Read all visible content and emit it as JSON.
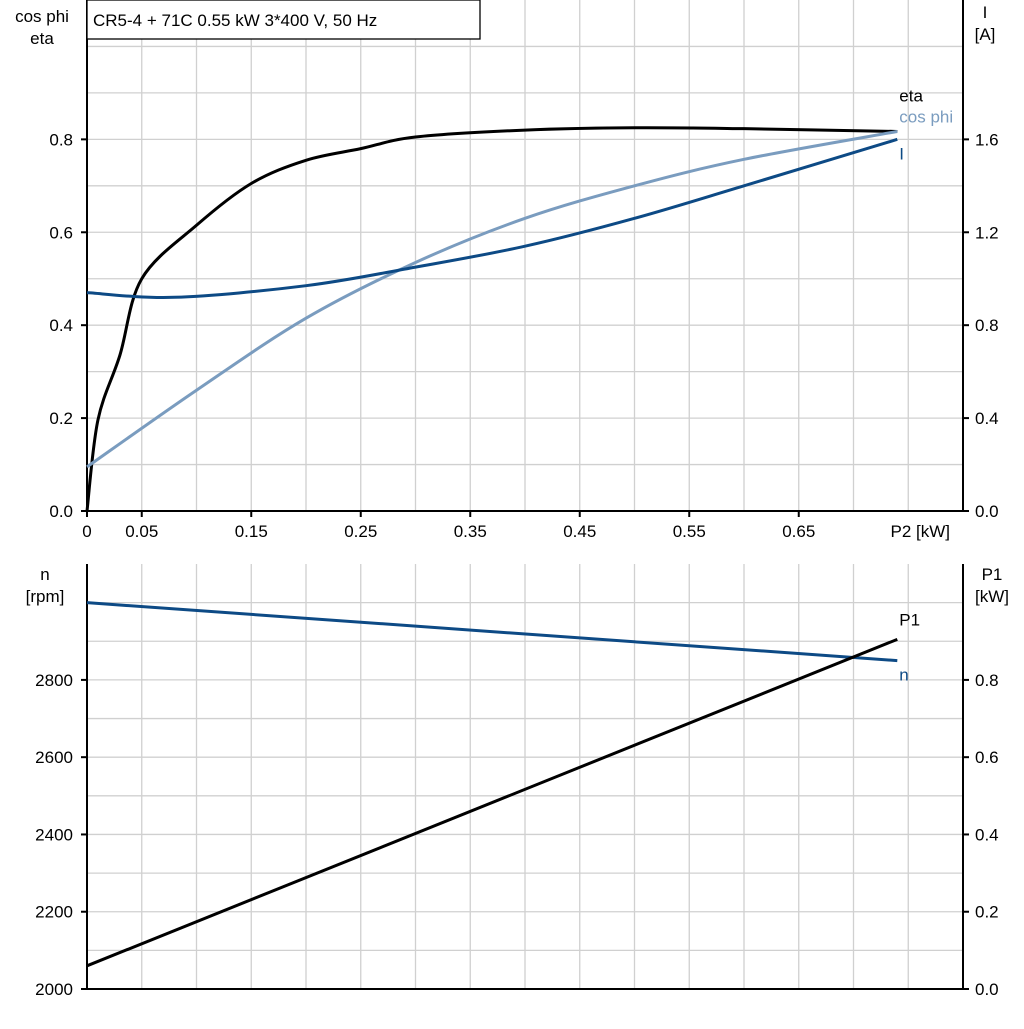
{
  "chart_data": [
    {
      "type": "line",
      "title": "CR5-4 + 71C   0.55 kW   3*400 V, 50 Hz",
      "xlabel": "P2 [kW]",
      "xlim": [
        0,
        0.8
      ],
      "x_ticks": [
        "0",
        "0.05",
        "0.15",
        "0.25",
        "0.35",
        "0.45",
        "0.55",
        "0.65"
      ],
      "x_tick_values": [
        0,
        0.05,
        0.15,
        0.25,
        0.35,
        0.45,
        0.55,
        0.65
      ],
      "ylabel_left": [
        "cos phi",
        "eta"
      ],
      "ylim_left": [
        0,
        1.1
      ],
      "y_ticks_left": [
        "0.0",
        "0.2",
        "0.4",
        "0.6",
        "0.8"
      ],
      "ylabel_right": [
        "I",
        "[A]"
      ],
      "ylim_right": [
        0,
        2.2
      ],
      "y_ticks_right": [
        "0.0",
        "0.4",
        "0.8",
        "1.2",
        "1.6"
      ],
      "grid": true,
      "series": [
        {
          "name": "eta",
          "axis": "left",
          "color": "#000000",
          "x": [
            0,
            0.01,
            0.03,
            0.05,
            0.1,
            0.15,
            0.2,
            0.25,
            0.3,
            0.4,
            0.5,
            0.6,
            0.74
          ],
          "y": [
            0,
            0.196,
            0.335,
            0.5,
            0.615,
            0.705,
            0.755,
            0.78,
            0.805,
            0.82,
            0.825,
            0.823,
            0.817
          ]
        },
        {
          "name": "cos phi",
          "axis": "left",
          "color": "#7a9cbf",
          "x": [
            0,
            0.1,
            0.2,
            0.3,
            0.4,
            0.5,
            0.6,
            0.74
          ],
          "y": [
            0.095,
            0.26,
            0.415,
            0.535,
            0.63,
            0.7,
            0.757,
            0.817
          ]
        },
        {
          "name": "I",
          "axis": "right",
          "color": "#0d4a85",
          "x": [
            0,
            0.08,
            0.2,
            0.3,
            0.4,
            0.5,
            0.6,
            0.74
          ],
          "y": [
            0.94,
            0.92,
            0.97,
            1.05,
            1.14,
            1.26,
            1.4,
            1.6
          ]
        }
      ]
    },
    {
      "type": "line",
      "xlim": [
        0,
        0.8
      ],
      "ylabel_left": [
        "n",
        "[rpm]"
      ],
      "ylim_left": [
        2000,
        3100
      ],
      "y_ticks_left": [
        "2000",
        "2200",
        "2400",
        "2600",
        "2800"
      ],
      "ylabel_right": [
        "P1",
        "[kW]"
      ],
      "ylim_right": [
        0,
        1.1
      ],
      "y_ticks_right": [
        "0.0",
        "0.2",
        "0.4",
        "0.6",
        "0.8"
      ],
      "grid": true,
      "series": [
        {
          "name": "n",
          "axis": "left",
          "color": "#0d4a85",
          "x": [
            0,
            0.74
          ],
          "y": [
            3000,
            2850
          ]
        },
        {
          "name": "P1",
          "axis": "right",
          "color": "#000000",
          "x": [
            0,
            0.74
          ],
          "y": [
            0.06,
            0.905
          ]
        }
      ]
    }
  ]
}
